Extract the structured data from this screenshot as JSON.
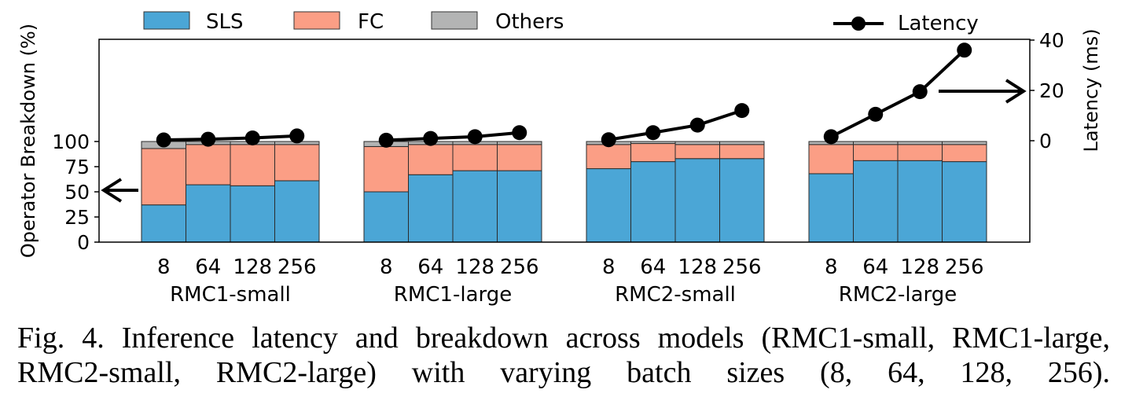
{
  "caption": "Fig. 4.  Inference latency and breakdown across models (RMC1-small, RMC1-large, RMC2-small, RMC2-large) with varying batch sizes (8, 64, 128, 256).",
  "colors": {
    "sls": "#4ba6d6",
    "fc": "#fb9e85",
    "others": "#b3b4b4",
    "latency": "#000000"
  },
  "chart_data": {
    "type": "bar",
    "stacked": true,
    "ylabel": "Operator Breakdown (%)",
    "y2label": "Latency (ms)",
    "ylim": [
      0,
      100
    ],
    "y_ticks": [
      "0",
      "25",
      "50",
      "75",
      "100"
    ],
    "y2_ticks": [
      "0",
      "20",
      "40"
    ],
    "y2lim": [
      0,
      40
    ],
    "groups": [
      "RMC1-small",
      "RMC1-large",
      "RMC2-small",
      "RMC2-large"
    ],
    "batch_sizes": [
      "8",
      "64",
      "128",
      "256"
    ],
    "legend": [
      {
        "key": "sls",
        "label": "SLS"
      },
      {
        "key": "fc",
        "label": "FC"
      },
      {
        "key": "others",
        "label": "Others"
      },
      {
        "key": "latency",
        "label": "Latency"
      }
    ],
    "legend_position": "top",
    "series": [
      {
        "name": "SLS",
        "values": [
          [
            37,
            57,
            56,
            61
          ],
          [
            50,
            67,
            71,
            71
          ],
          [
            73,
            80,
            83,
            83
          ],
          [
            68,
            81,
            81,
            80
          ]
        ]
      },
      {
        "name": "FC",
        "values": [
          [
            56,
            40,
            41,
            36
          ],
          [
            45,
            30,
            26,
            26
          ],
          [
            24,
            18,
            14,
            14
          ],
          [
            29,
            16,
            16,
            17
          ]
        ]
      },
      {
        "name": "Others",
        "values": [
          [
            7,
            3,
            3,
            3
          ],
          [
            5,
            3,
            3,
            3
          ],
          [
            3,
            2,
            3,
            3
          ],
          [
            3,
            3,
            3,
            3
          ]
        ]
      },
      {
        "name": "Latency",
        "values": [
          [
            0.3,
            0.6,
            1.1,
            1.9
          ],
          [
            0.2,
            0.9,
            1.6,
            3.2
          ],
          [
            0.4,
            3.2,
            6.2,
            12.0
          ],
          [
            1.6,
            10.5,
            19.5,
            36.0
          ]
        ]
      }
    ],
    "annotations": [
      "arrow pointing to left axis",
      "arrow pointing to right axis"
    ]
  }
}
